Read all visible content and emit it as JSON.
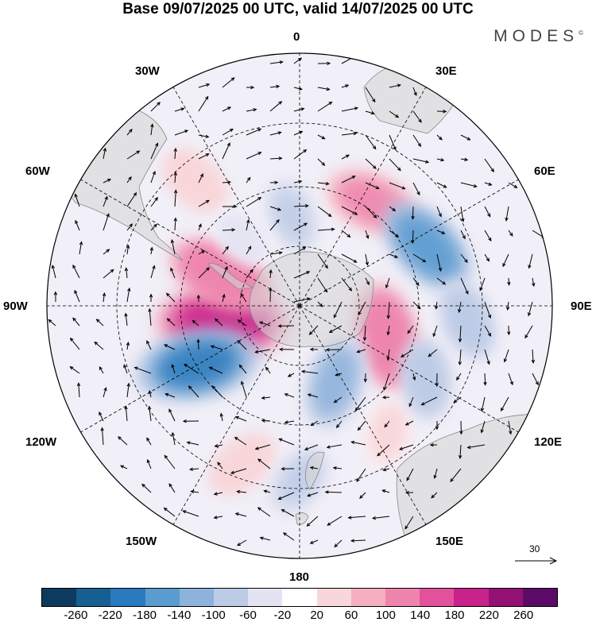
{
  "title": "Base 09/07/2025 00 UTC, valid 14/07/2025 00 UTC",
  "brand": "MODES",
  "brand_mark": "©",
  "longitude_labels": [
    "0",
    "30E",
    "60E",
    "90E",
    "120E",
    "150E",
    "180",
    "150W",
    "120W",
    "90W",
    "60W",
    "30W"
  ],
  "reference_vector": "30",
  "colorbar": {
    "colors": [
      "#0d3b5e",
      "#155f92",
      "#2a7bbd",
      "#5a9bd0",
      "#8db3dc",
      "#bccbe6",
      "#e3e3f2",
      "#ffffff",
      "#f8d6d9",
      "#f5afc0",
      "#ee84ae",
      "#e2519c",
      "#c8238a",
      "#951075",
      "#5c0a67"
    ],
    "tick_labels": [
      "-260",
      "-220",
      "-180",
      "-140",
      "-100",
      "-60",
      "-20",
      "20",
      "60",
      "100",
      "140",
      "180",
      "220",
      "260"
    ]
  },
  "chart_data": {
    "type": "map",
    "projection": "south polar stereographic",
    "field": "anomaly shading with wind vectors",
    "levels": [
      -260,
      -220,
      -180,
      -140,
      -100,
      -60,
      -20,
      20,
      60,
      100,
      140,
      180,
      220,
      260
    ],
    "positive_anomalies": [
      {
        "lon": 35,
        "lat": -45,
        "value": 120
      },
      {
        "lon": 110,
        "lat": -57,
        "value": 140
      },
      {
        "lon": 145,
        "lat": -35,
        "value": 40
      },
      {
        "lon": 258,
        "lat": -62,
        "value": 200
      },
      {
        "lon": 292,
        "lat": -60,
        "value": 140
      },
      {
        "lon": 320,
        "lat": -32,
        "value": 60
      },
      {
        "lon": 200,
        "lat": -30,
        "value": 60
      }
    ],
    "negative_anomalies": [
      {
        "lon": 65,
        "lat": -40,
        "value": -140
      },
      {
        "lon": 95,
        "lat": -30,
        "value": -80
      },
      {
        "lon": 155,
        "lat": -60,
        "value": -120
      },
      {
        "lon": 120,
        "lat": -38,
        "value": -80
      },
      {
        "lon": 240,
        "lat": -48,
        "value": -180
      },
      {
        "lon": 180,
        "lat": -28,
        "value": -60
      },
      {
        "lon": 355,
        "lat": -58,
        "value": -60
      },
      {
        "lon": 320,
        "lat": -58,
        "value": -40
      }
    ]
  }
}
